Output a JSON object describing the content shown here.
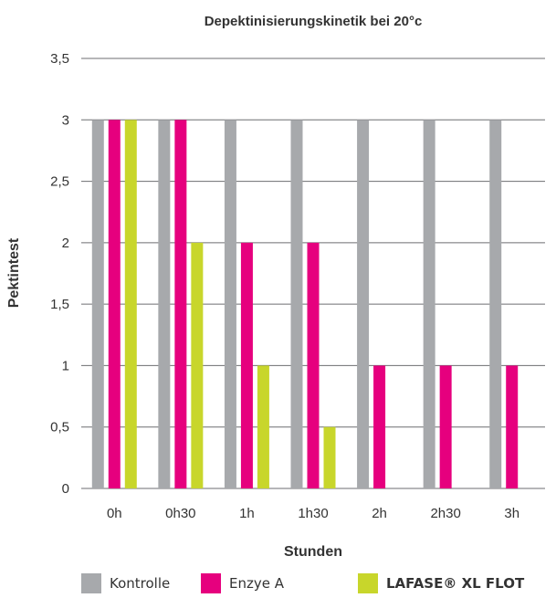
{
  "chart_data": {
    "type": "bar",
    "title": "Depektinisierungskinetik bei 20°c",
    "xlabel": "Stunden",
    "ylabel": "Pektintest",
    "categories": [
      "0h",
      "0h30",
      "1h",
      "1h30",
      "2h",
      "2h30",
      "3h"
    ],
    "ylim": [
      0,
      3.5
    ],
    "yticks": [
      0,
      0.5,
      1,
      1.5,
      2,
      2.5,
      3,
      3.5
    ],
    "ytick_labels": [
      "0",
      "0,5",
      "1",
      "1,5",
      "2",
      "2,5",
      "3",
      "3,5"
    ],
    "grid": true,
    "legend_position": "bottom",
    "series": [
      {
        "name": "Kontrolle",
        "color": "#a7a9ac",
        "values": [
          3,
          3,
          3,
          3,
          3,
          3,
          3
        ]
      },
      {
        "name": "Enzye A",
        "color": "#e6007e",
        "values": [
          3,
          3,
          2,
          2,
          1,
          1,
          1
        ]
      },
      {
        "name": "LAFASE® XL FLOT",
        "color": "#c8d62b",
        "values": [
          3,
          2,
          1,
          0.5,
          0,
          0,
          0
        ]
      }
    ]
  }
}
